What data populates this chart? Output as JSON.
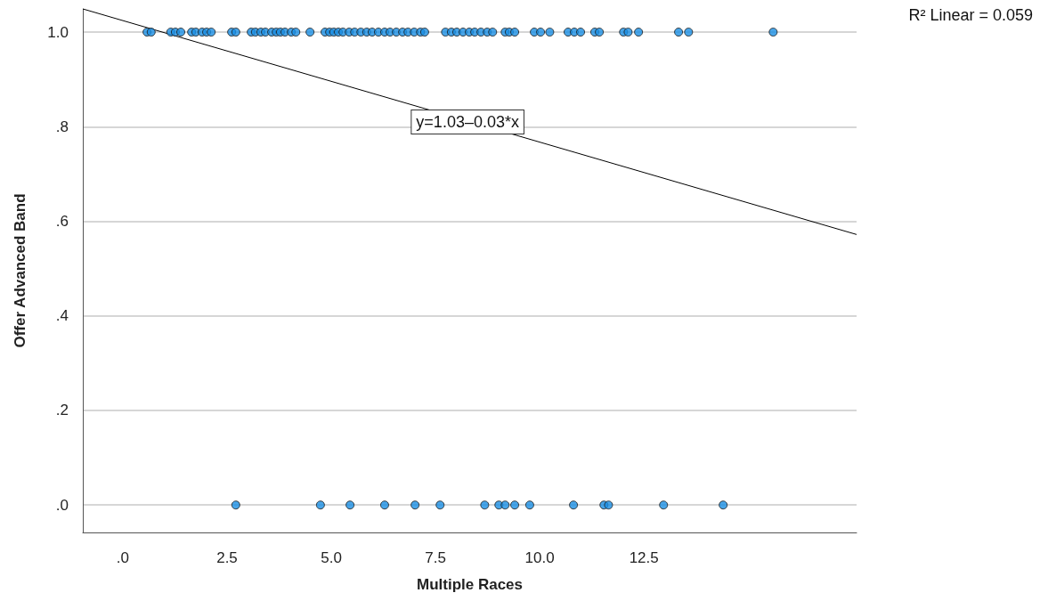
{
  "chart_data": {
    "type": "scatter",
    "xlabel": "Multiple Races",
    "ylabel": "Offer Advanced Band",
    "xlim": [
      -0.96,
      17.6
    ],
    "ylim": [
      -0.058,
      1.049
    ],
    "xticks": [
      {
        "value": 0,
        "label": ".0"
      },
      2.5,
      {
        "value": 5,
        "label": "5.0"
      },
      7.5,
      {
        "value": 10,
        "label": "10.0"
      },
      12.5
    ],
    "yticks": [
      {
        "value": 0,
        "label": ".0"
      },
      {
        "value": 0.2,
        "label": ".2"
      },
      {
        "value": 0.4,
        "label": ".4"
      },
      {
        "value": 0.6,
        "label": ".6"
      },
      {
        "value": 0.8,
        "label": ".8"
      },
      {
        "value": 1,
        "label": "1.0"
      }
    ],
    "grid": "y",
    "marker": "circle",
    "series": [
      {
        "color": "#1a8fe3",
        "x": [
          0.58,
          0.68,
          1.15,
          1.26,
          1.39,
          1.65,
          1.75,
          1.9,
          2.01,
          2.12,
          2.61,
          2.71,
          3.08,
          3.18,
          3.31,
          3.42,
          3.57,
          3.68,
          3.78,
          3.89,
          4.04,
          4.15,
          4.49,
          4.85,
          4.96,
          5.06,
          5.17,
          5.28,
          5.43,
          5.56,
          5.71,
          5.85,
          5.98,
          6.13,
          6.28,
          6.41,
          6.56,
          6.71,
          6.84,
          6.99,
          7.14,
          7.24,
          7.74,
          7.88,
          8.01,
          8.16,
          8.31,
          8.44,
          8.59,
          8.74,
          8.87,
          9.17,
          9.27,
          9.4,
          9.87,
          10.02,
          10.24,
          10.68,
          10.83,
          10.98,
          11.32,
          11.43,
          12.01,
          12.12,
          12.37,
          13.33,
          13.57,
          15.6
        ],
        "values": [
          1,
          1,
          1,
          1,
          1,
          1,
          1,
          1,
          1,
          1,
          1,
          1,
          1,
          1,
          1,
          1,
          1,
          1,
          1,
          1,
          1,
          1,
          1,
          1,
          1,
          1,
          1,
          1,
          1,
          1,
          1,
          1,
          1,
          1,
          1,
          1,
          1,
          1,
          1,
          1,
          1,
          1,
          1,
          1,
          1,
          1,
          1,
          1,
          1,
          1,
          1,
          1,
          1,
          1,
          1,
          1,
          1,
          1,
          1,
          1,
          1,
          1,
          1,
          1,
          1,
          1,
          1,
          1
        ]
      },
      {
        "color": "#1a8fe3",
        "x": [
          2.71,
          4.74,
          5.45,
          6.28,
          7.01,
          7.61,
          8.68,
          9.02,
          9.17,
          9.4,
          9.76,
          10.81,
          11.54,
          11.65,
          12.97,
          14.4
        ],
        "values": [
          0,
          0,
          0,
          0,
          0,
          0,
          0,
          0,
          0,
          0,
          0,
          0,
          0,
          0,
          0,
          0
        ]
      },
      {
        "type": "line",
        "color": "#000000",
        "marker": "none",
        "x": [
          -0.96,
          17.6
        ],
        "values": [
          1.049,
          0.572
        ]
      }
    ],
    "annotations": [
      {
        "text": "y=1.03–0.03*x",
        "x": 8.27,
        "y": 0.81
      },
      "R² Linear = 0.059"
    ]
  }
}
